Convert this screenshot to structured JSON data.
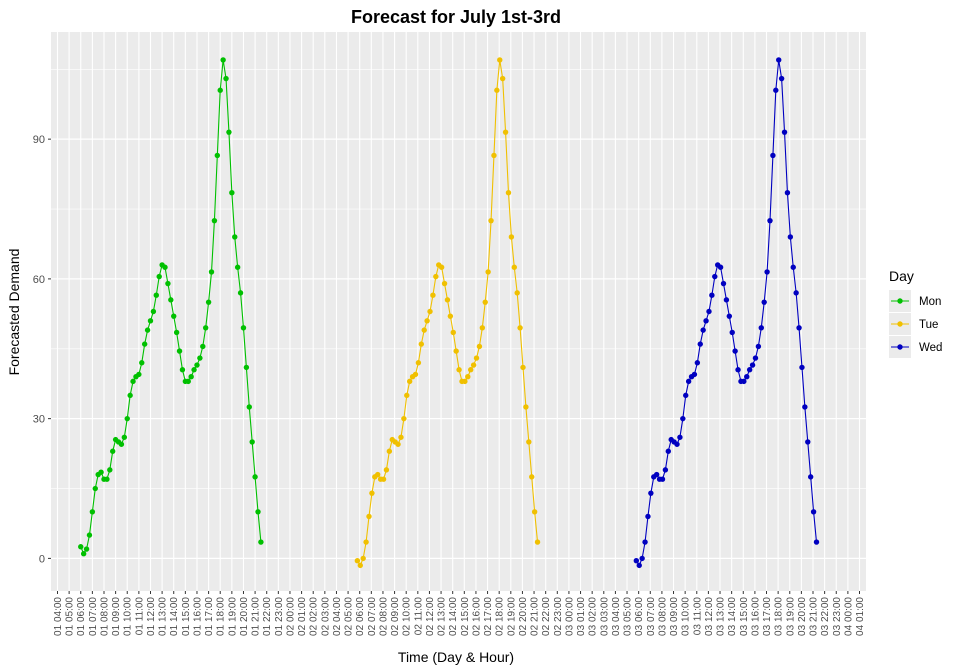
{
  "chart_data": {
    "type": "line",
    "title": "Forecast for July 1st-3rd",
    "xlabel": "Time (Day & Hour)",
    "ylabel": "Forecasted Demand",
    "ylim": [
      -7,
      113
    ],
    "y_ticks": [
      0,
      30,
      60,
      90
    ],
    "x_tick_labels": [
      "01 04:00",
      "01 05:00",
      "01 06:00",
      "01 07:00",
      "01 08:00",
      "01 09:00",
      "01 10:00",
      "01 11:00",
      "01 12:00",
      "01 13:00",
      "01 14:00",
      "01 15:00",
      "01 16:00",
      "01 17:00",
      "01 18:00",
      "01 19:00",
      "01 20:00",
      "01 21:00",
      "01 22:00",
      "01 23:00",
      "02 00:00",
      "02 01:00",
      "02 02:00",
      "02 03:00",
      "02 04:00",
      "02 05:00",
      "02 06:00",
      "02 07:00",
      "02 08:00",
      "02 09:00",
      "02 10:00",
      "02 11:00",
      "02 12:00",
      "02 13:00",
      "02 14:00",
      "02 15:00",
      "02 16:00",
      "02 17:00",
      "02 18:00",
      "02 19:00",
      "02 20:00",
      "02 21:00",
      "02 22:00",
      "02 23:00",
      "03 00:00",
      "03 01:00",
      "03 02:00",
      "03 03:00",
      "03 04:00",
      "03 05:00",
      "03 06:00",
      "03 07:00",
      "03 08:00",
      "03 09:00",
      "03 10:00",
      "03 11:00",
      "03 12:00",
      "03 13:00",
      "03 14:00",
      "03 15:00",
      "03 16:00",
      "03 17:00",
      "03 18:00",
      "03 19:00",
      "03 20:00",
      "03 21:00",
      "03 22:00",
      "03 23:00",
      "04 00:00",
      "04 01:00"
    ],
    "x_unit": "hours from 01 04:00",
    "grid": true,
    "legend": {
      "title": "Day",
      "position": "right"
    },
    "panel_background": "#ebebeb",
    "series": [
      {
        "name": "Mon",
        "color": "#00c000",
        "x_start": 2.0,
        "x_step": 0.25,
        "values": [
          2.5,
          1,
          2,
          5,
          10,
          15,
          18,
          18.5,
          17,
          17,
          19,
          23,
          25.5,
          25,
          24.5,
          26,
          30,
          35,
          38,
          39,
          39.5,
          42,
          46,
          49,
          51,
          53,
          56.5,
          60.5,
          63,
          62.5,
          59,
          55.5,
          52,
          48.5,
          44.5,
          40.5,
          38,
          38,
          39,
          40.5,
          41.5,
          43,
          45.5,
          49.5,
          55,
          61.5,
          72.5,
          86.5,
          100.5,
          107,
          103,
          91.5,
          78.5,
          69,
          62.5,
          57,
          49.5,
          41,
          32.5,
          25,
          17.5,
          10,
          3.5
        ]
      },
      {
        "name": "Tue",
        "color": "#f0c000",
        "x_start": 25.8,
        "x_step": 0.25,
        "values": [
          -0.5,
          -1.5,
          0,
          3.5,
          9,
          14,
          17.5,
          18,
          17,
          17,
          19,
          23,
          25.5,
          25,
          24.5,
          26,
          30,
          35,
          38,
          39,
          39.5,
          42,
          46,
          49,
          51,
          53,
          56.5,
          60.5,
          63,
          62.5,
          59,
          55.5,
          52,
          48.5,
          44.5,
          40.5,
          38,
          38,
          39,
          40.5,
          41.5,
          43,
          45.5,
          49.5,
          55,
          61.5,
          72.5,
          86.5,
          100.5,
          107,
          103,
          91.5,
          78.5,
          69,
          62.5,
          57,
          49.5,
          41,
          32.5,
          25,
          17.5,
          10,
          3.5
        ]
      },
      {
        "name": "Wed",
        "color": "#0000c0",
        "x_start": 49.8,
        "x_step": 0.25,
        "values": [
          -0.5,
          -1.5,
          0,
          3.5,
          9,
          14,
          17.5,
          18,
          17,
          17,
          19,
          23,
          25.5,
          25,
          24.5,
          26,
          30,
          35,
          38,
          39,
          39.5,
          42,
          46,
          49,
          51,
          53,
          56.5,
          60.5,
          63,
          62.5,
          59,
          55.5,
          52,
          48.5,
          44.5,
          40.5,
          38,
          38,
          39,
          40.5,
          41.5,
          43,
          45.5,
          49.5,
          55,
          61.5,
          72.5,
          86.5,
          100.5,
          107,
          103,
          91.5,
          78.5,
          69,
          62.5,
          57,
          49.5,
          41,
          32.5,
          25,
          17.5,
          10,
          3.5
        ]
      }
    ]
  }
}
